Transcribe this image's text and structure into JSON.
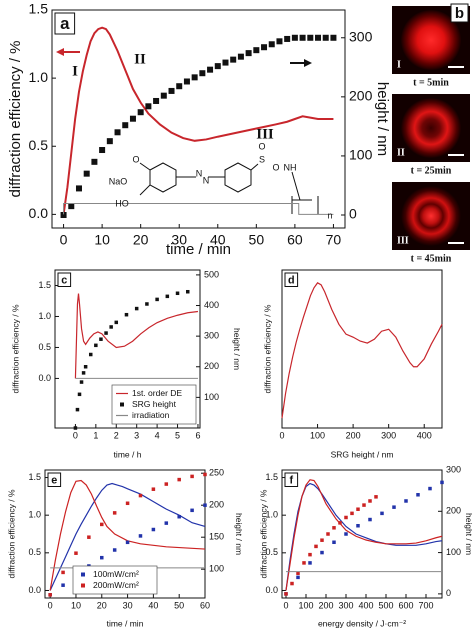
{
  "chart_data": [
    {
      "type": "line",
      "panel_label": "a",
      "x_label": "time / min",
      "y_label": "diffraction efficiency / %",
      "y2_label": "height / nm",
      "xlim": [
        -3,
        73
      ],
      "xticks": [
        0,
        10,
        20,
        30,
        40,
        50,
        60,
        70
      ],
      "ylim": [
        -0.1,
        1.5
      ],
      "yticks": [
        {
          "value": 0,
          "label": "0.0"
        },
        0.5,
        {
          "value": 1,
          "label": "1.0"
        },
        1.5
      ],
      "y2lim": [
        -22,
        347
      ],
      "y2ticks": [
        0,
        100,
        200,
        300
      ],
      "annotations": [
        "I",
        "II",
        "III"
      ],
      "structure_labels": [
        "NaO",
        "O",
        "HO",
        "N",
        "N",
        "S",
        "O",
        "O",
        "NH",
        "n"
      ],
      "series": [
        {
          "type": "line",
          "color": "#c8262c",
          "x": [
            0,
            1,
            2,
            3,
            4,
            5,
            6,
            7,
            8,
            9,
            10,
            11,
            12,
            14,
            16,
            18,
            20,
            22,
            25,
            28,
            31,
            34,
            37,
            40,
            45,
            50,
            55,
            58,
            60,
            62,
            64,
            66,
            70
          ],
          "values": [
            0,
            0.2,
            0.45,
            0.7,
            0.9,
            1.05,
            1.17,
            1.27,
            1.33,
            1.36,
            1.37,
            1.36,
            1.32,
            1.2,
            1.06,
            0.92,
            0.82,
            0.74,
            0.66,
            0.6,
            0.56,
            0.54,
            0.55,
            0.57,
            0.6,
            0.63,
            0.66,
            0.68,
            0.7,
            0.72,
            0.71,
            0.7,
            0.7
          ]
        },
        {
          "type": "scatter",
          "marker": "square",
          "color": "#111111",
          "axis": "y2",
          "x": [
            0,
            2,
            4,
            6,
            8,
            10,
            12,
            14,
            16,
            18,
            20,
            22,
            24,
            26,
            28,
            30,
            32,
            34,
            36,
            38,
            40,
            42,
            44,
            46,
            48,
            50,
            52,
            54,
            56,
            58,
            60,
            62,
            64,
            66,
            68,
            70
          ],
          "values": [
            0,
            15,
            45,
            70,
            90,
            110,
            125,
            140,
            152,
            163,
            174,
            184,
            193,
            202,
            210,
            218,
            226,
            233,
            240,
            246,
            252,
            258,
            263,
            268,
            274,
            279,
            284,
            289,
            294,
            298,
            300,
            300,
            300,
            300,
            300,
            300
          ]
        },
        {
          "type": "line",
          "color": "#888888",
          "x": [
            0,
            0,
            61,
            61,
            70
          ],
          "values": [
            0,
            0.08,
            0.08,
            0,
            0
          ]
        }
      ]
    },
    {
      "type": "line",
      "panel_label": "c",
      "x_label": "time / h",
      "y_label": "diffraction efficiency / %",
      "y2_label": "height / nm",
      "xlim": [
        -1,
        6.1
      ],
      "xticks": [
        0,
        1,
        2,
        3,
        4,
        5,
        6
      ],
      "ylim": [
        -0.8,
        1.75
      ],
      "yticks": [
        {
          "value": 0,
          "label": "0.0"
        },
        0.5,
        {
          "value": 1,
          "label": "1.0"
        },
        1.5
      ],
      "y2lim": [
        0,
        516
      ],
      "y2ticks": [
        100,
        200,
        300,
        400,
        500
      ],
      "legend": "lower right",
      "series": [
        {
          "type": "line",
          "name": "1st. order DE",
          "color": "#c8262c",
          "x": [
            0,
            0.05,
            0.1,
            0.15,
            0.2,
            0.3,
            0.4,
            0.5,
            0.7,
            0.9,
            1.1,
            1.3,
            1.6,
            2.0,
            2.4,
            2.8,
            3.2,
            3.6,
            4,
            4.5,
            5,
            5.5,
            6
          ],
          "values": [
            0,
            0.6,
            1.2,
            1.37,
            1.2,
            0.8,
            0.6,
            0.55,
            0.65,
            0.72,
            0.75,
            0.72,
            0.6,
            0.5,
            0.52,
            0.6,
            0.72,
            0.82,
            0.9,
            0.97,
            1.02,
            1.06,
            1.08
          ]
        },
        {
          "type": "scatter",
          "marker": "square",
          "name": "SRG height",
          "color": "#111111",
          "axis": "y2",
          "x": [
            0,
            0.1,
            0.2,
            0.3,
            0.4,
            0.5,
            0.75,
            1,
            1.25,
            1.5,
            1.75,
            2,
            2.5,
            3,
            3.5,
            4,
            4.5,
            5,
            5.5
          ],
          "values": [
            0,
            60,
            110,
            150,
            180,
            200,
            240,
            270,
            290,
            310,
            330,
            345,
            370,
            390,
            405,
            420,
            430,
            440,
            445
          ]
        },
        {
          "type": "line",
          "name": "irradiation",
          "color": "#888888",
          "x": [
            0,
            6
          ],
          "values": [
            0,
            0
          ]
        }
      ]
    },
    {
      "type": "line",
      "panel_label": "d",
      "x_label": "SRG height / nm",
      "y_label": "diffraction efficiency / %",
      "xlim": [
        0,
        450
      ],
      "xticks": [
        0,
        100,
        200,
        300,
        400
      ],
      "ylim": [
        -0.1,
        1.5
      ],
      "series": [
        {
          "type": "line",
          "color": "#c8262c",
          "x": [
            0,
            10,
            20,
            30,
            40,
            50,
            60,
            70,
            80,
            90,
            100,
            110,
            120,
            140,
            160,
            180,
            200,
            220,
            240,
            260,
            280,
            300,
            320,
            340,
            360,
            370,
            380,
            400,
            420,
            440,
            450
          ],
          "values": [
            0,
            0.25,
            0.45,
            0.62,
            0.77,
            0.9,
            1.02,
            1.13,
            1.24,
            1.32,
            1.37,
            1.35,
            1.28,
            1.1,
            0.95,
            0.85,
            0.82,
            0.78,
            0.76,
            0.8,
            0.88,
            0.9,
            0.82,
            0.68,
            0.56,
            0.52,
            0.52,
            0.6,
            0.75,
            0.88,
            0.95
          ]
        }
      ]
    },
    {
      "type": "line",
      "panel_label": "e",
      "x_label": "time / min",
      "y_label": "diffraction efficiency / %",
      "y2_label": "height / nm",
      "xlim": [
        -2,
        60
      ],
      "xticks": [
        0,
        10,
        20,
        30,
        40,
        50,
        60
      ],
      "ylim": [
        -0.1,
        1.6
      ],
      "yticks": [
        {
          "value": 0,
          "label": "0.0"
        },
        0.5,
        {
          "value": 1,
          "label": "1.0"
        },
        1.5
      ],
      "y2lim": [
        55,
        255
      ],
      "y2ticks": [
        100,
        150,
        200,
        250
      ],
      "legend": "lower center",
      "series": [
        {
          "type": "line",
          "color": "#2233aa",
          "x": [
            0,
            2,
            4,
            6,
            8,
            10,
            12,
            14,
            16,
            18,
            20,
            22,
            24,
            26,
            28,
            30,
            35,
            40,
            45,
            50,
            55,
            60
          ],
          "values": [
            0,
            0.15,
            0.3,
            0.45,
            0.6,
            0.75,
            0.88,
            1.0,
            1.12,
            1.23,
            1.33,
            1.4,
            1.42,
            1.4,
            1.38,
            1.35,
            1.28,
            1.18,
            1.08,
            1.0,
            0.9,
            0.85
          ]
        },
        {
          "type": "line",
          "color": "#cc2222",
          "x": [
            0,
            2,
            4,
            6,
            8,
            10,
            12,
            14,
            16,
            18,
            20,
            22,
            25,
            30,
            35,
            40,
            45,
            50,
            55,
            60
          ],
          "values": [
            0,
            0.4,
            0.75,
            1.05,
            1.3,
            1.45,
            1.46,
            1.4,
            1.28,
            1.12,
            0.97,
            0.85,
            0.75,
            0.66,
            0.62,
            0.6,
            0.58,
            0.57,
            0.56,
            0.55
          ]
        },
        {
          "type": "scatter",
          "marker": "square",
          "name": "100mW/cm²",
          "color": "#2233aa",
          "axis": "y2",
          "x": [
            0,
            5,
            10,
            15,
            20,
            25,
            30,
            35,
            40,
            45,
            50,
            55,
            60
          ],
          "values": [
            60,
            75,
            90,
            105,
            118,
            130,
            142,
            152,
            162,
            172,
            182,
            192,
            200
          ]
        },
        {
          "type": "scatter",
          "marker": "square",
          "name": "200mW/cm²",
          "color": "#cc2222",
          "axis": "y2",
          "x": [
            0,
            5,
            10,
            15,
            20,
            25,
            30,
            35,
            40,
            45,
            50,
            55,
            60
          ],
          "values": [
            60,
            95,
            125,
            150,
            170,
            188,
            203,
            215,
            225,
            233,
            240,
            245,
            248
          ]
        },
        {
          "type": "line",
          "color": "#888888",
          "x": [
            0,
            60
          ],
          "values": [
            0.3,
            0.3
          ]
        }
      ]
    },
    {
      "type": "line",
      "panel_label": "f",
      "x_label": "energy density / J·cm⁻²",
      "y_label": "diffraction efficiency / %",
      "y2_label": "height / nm",
      "xlim": [
        -20,
        780
      ],
      "xticks": [
        0,
        100,
        200,
        300,
        400,
        500,
        600,
        700
      ],
      "ylim": [
        -0.1,
        1.6
      ],
      "yticks": [
        {
          "value": 0,
          "label": "0.0"
        },
        0.5,
        {
          "value": 1,
          "label": "1.0"
        },
        1.5
      ],
      "y2lim": [
        -10,
        300
      ],
      "y2ticks": [
        0,
        100,
        200,
        300
      ],
      "series": [
        {
          "type": "line",
          "color": "#2233aa",
          "x": [
            0,
            20,
            40,
            60,
            80,
            100,
            120,
            140,
            160,
            180,
            200,
            250,
            300,
            350,
            400,
            450,
            500,
            550,
            600,
            650,
            700,
            750,
            780
          ],
          "values": [
            0,
            0.4,
            0.75,
            1.05,
            1.25,
            1.38,
            1.42,
            1.4,
            1.35,
            1.28,
            1.2,
            1.0,
            0.85,
            0.75,
            0.7,
            0.65,
            0.62,
            0.6,
            0.6,
            0.6,
            0.62,
            0.65,
            0.66
          ]
        },
        {
          "type": "line",
          "color": "#cc2222",
          "x": [
            0,
            20,
            40,
            60,
            80,
            100,
            120,
            140,
            160,
            200,
            250,
            300,
            350,
            400,
            450,
            500,
            550,
            600,
            650,
            700,
            750,
            780
          ],
          "values": [
            0,
            0.35,
            0.7,
            1.0,
            1.25,
            1.4,
            1.47,
            1.46,
            1.38,
            1.15,
            0.95,
            0.8,
            0.72,
            0.67,
            0.64,
            0.62,
            0.62,
            0.62,
            0.63,
            0.66,
            0.7,
            0.72
          ]
        },
        {
          "type": "scatter",
          "marker": "square",
          "color": "#2233aa",
          "axis": "y2",
          "x": [
            0,
            60,
            120,
            180,
            240,
            300,
            360,
            420,
            480,
            540,
            600,
            660,
            720,
            780
          ],
          "values": [
            0,
            40,
            75,
            100,
            125,
            145,
            165,
            180,
            195,
            210,
            225,
            240,
            255,
            270
          ]
        },
        {
          "type": "scatter",
          "marker": "square",
          "color": "#cc2222",
          "axis": "y2",
          "x": [
            0,
            30,
            60,
            90,
            120,
            150,
            180,
            210,
            240,
            270,
            300,
            330,
            360,
            390,
            420,
            450
          ],
          "values": [
            0,
            25,
            50,
            75,
            95,
            115,
            130,
            145,
            160,
            172,
            185,
            195,
            205,
            215,
            225,
            235
          ]
        },
        {
          "type": "line",
          "color": "#888888",
          "x": [
            0,
            780
          ],
          "values": [
            0.25,
            0.25
          ]
        }
      ]
    }
  ],
  "panel_b": {
    "panel_label": "b",
    "images": [
      {
        "numeral": "I",
        "caption": "t = 5min"
      },
      {
        "numeral": "II",
        "caption": "t = 25min"
      },
      {
        "numeral": "III",
        "caption": "t = 45min"
      }
    ]
  }
}
